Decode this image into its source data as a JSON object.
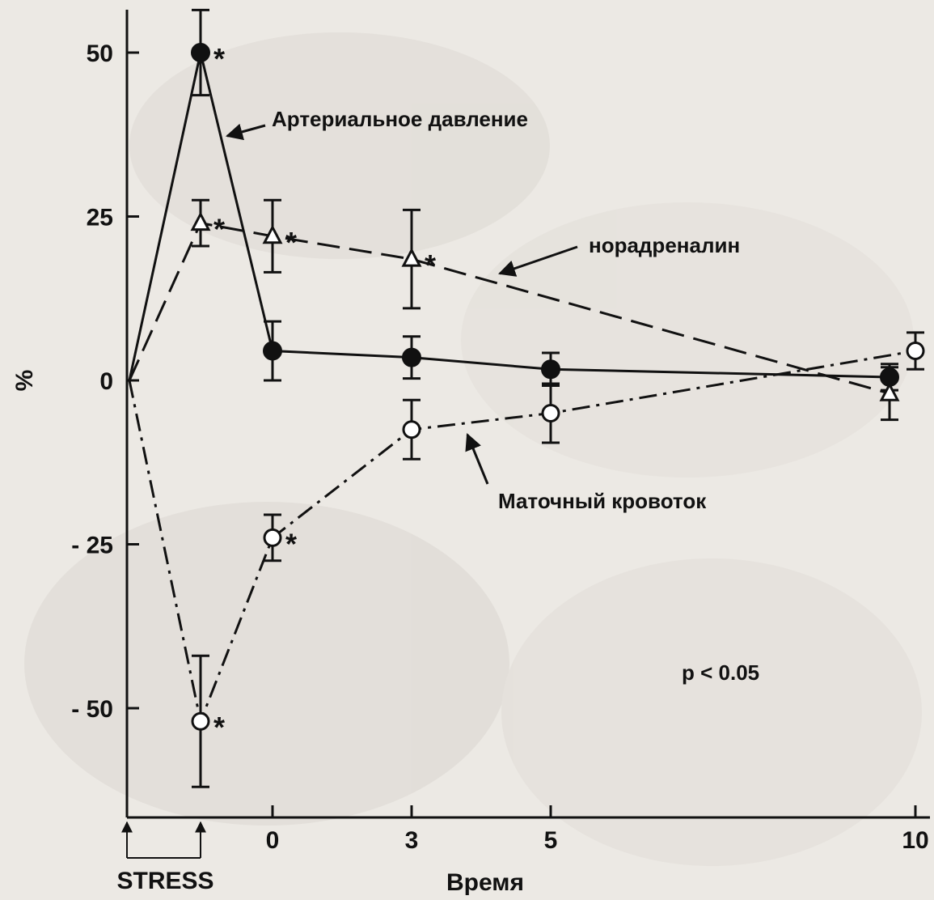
{
  "chart_data": {
    "type": "line",
    "title": "",
    "xlabel": "Время",
    "ylabel": "%",
    "ylim": [
      -60,
      57
    ],
    "y_ticks": [
      50,
      25,
      0,
      -25,
      -50
    ],
    "y_tick_labels": [
      "50",
      "25",
      "0",
      "- 25",
      "- 50"
    ],
    "x_tick_labels": [
      {
        "x": 0,
        "label": "0"
      },
      {
        "x": 3,
        "label": "3"
      },
      {
        "x": 5,
        "label": "5"
      },
      {
        "x": 10,
        "label": "10"
      }
    ],
    "stress_label": "STRESS",
    "stress_x_range": [
      -2,
      -1
    ],
    "series": [
      {
        "name": "Артериальное давление",
        "marker": "filled-circle",
        "dash": "solid",
        "x": [
          -2,
          -1,
          0,
          2,
          4,
          9.7
        ],
        "y": [
          0,
          50,
          4.5,
          3.5,
          1.7,
          0.5
        ],
        "err": [
          0,
          6.5,
          4.5,
          3.2,
          2.5,
          2.0
        ],
        "sig": [
          false,
          true,
          false,
          false,
          false,
          false
        ]
      },
      {
        "name": "норадреналин",
        "marker": "open-triangle",
        "dash": "dashed",
        "x": [
          -2,
          -1,
          0,
          2,
          9.7
        ],
        "y": [
          0,
          24,
          22,
          18.5,
          -2
        ],
        "err": [
          0,
          3.5,
          5.5,
          7.5,
          4.0
        ],
        "sig": [
          false,
          true,
          true,
          true,
          false
        ]
      },
      {
        "name": "Маточный кровоток",
        "marker": "open-circle",
        "dash": "dash-dot",
        "x": [
          -2,
          -1,
          0,
          2,
          4,
          10
        ],
        "y": [
          0,
          -52,
          -24,
          -7.5,
          -5,
          4.5
        ],
        "err": [
          0,
          10,
          3.5,
          4.5,
          4.5,
          2.8
        ],
        "sig": [
          false,
          true,
          true,
          false,
          false,
          false
        ]
      }
    ],
    "significance_marker": "*",
    "annotations": [
      {
        "text": "Артериальное давление"
      },
      {
        "text": "норадреналин"
      },
      {
        "text": "Маточный кровоток"
      },
      {
        "text": "p < 0.05"
      }
    ],
    "grid": false,
    "legend": "none"
  }
}
